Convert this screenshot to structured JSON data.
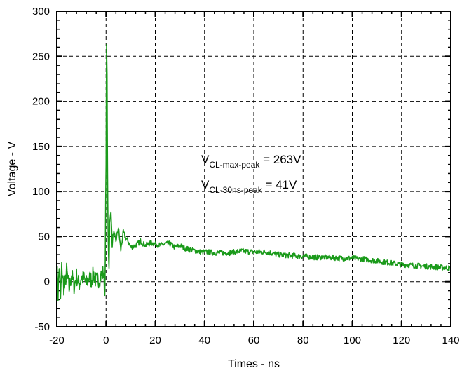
{
  "chart_data": {
    "type": "line",
    "title": "",
    "xlabel": "Times - ns",
    "ylabel": "Voltage - V",
    "xlim": [
      -20,
      140
    ],
    "ylim": [
      -50,
      300
    ],
    "xticks": [
      -20,
      0,
      20,
      40,
      60,
      80,
      100,
      120,
      140
    ],
    "yticks": [
      -50,
      0,
      50,
      100,
      150,
      200,
      250,
      300
    ],
    "grid": true,
    "grid_style": "dashed",
    "colors": {
      "series": "#1a9a1a",
      "grid": "#000000",
      "axis": "#000000"
    },
    "annotations": [
      {
        "main": "V",
        "sub": "CL-max-peak",
        "rest": " = 263V"
      },
      {
        "main": "V",
        "sub": "CL-30ns-peak",
        "rest": " = 41V"
      }
    ],
    "series": [
      {
        "x": [
          -20,
          -19.5,
          -19,
          -18.5,
          -18,
          -17,
          -16,
          -15,
          -14,
          -13,
          -12,
          -11,
          -10,
          -9,
          -8,
          -7,
          -6,
          -5,
          -4,
          -3,
          -2,
          -1,
          -0.5,
          0,
          0.2,
          0.4,
          0.6,
          0.8,
          1.0,
          1.2,
          1.5,
          2,
          2.5,
          3,
          4,
          5,
          6,
          7,
          8,
          9,
          10,
          12,
          14,
          16,
          18,
          20,
          22,
          24,
          26,
          28,
          30,
          32,
          35,
          38,
          40,
          45,
          50,
          55,
          60,
          65,
          70,
          75,
          80,
          85,
          90,
          95,
          100,
          105,
          110,
          115,
          120,
          125,
          130,
          135,
          140
        ],
        "y": [
          20,
          -15,
          18,
          -20,
          15,
          -10,
          12,
          -8,
          8,
          -5,
          6,
          -3,
          5,
          3,
          -2,
          4,
          2,
          8,
          0,
          3,
          7,
          10,
          -15,
          130,
          263,
          230,
          120,
          60,
          30,
          15,
          65,
          80,
          40,
          55,
          45,
          60,
          35,
          55,
          48,
          45,
          38,
          40,
          45,
          40,
          43,
          42,
          40,
          42,
          42,
          38,
          40,
          37,
          35,
          33,
          33,
          32,
          32,
          34,
          33,
          33,
          30,
          29,
          28,
          27,
          27,
          26,
          26,
          25,
          23,
          21,
          19,
          18,
          17,
          16,
          15
        ]
      }
    ]
  }
}
